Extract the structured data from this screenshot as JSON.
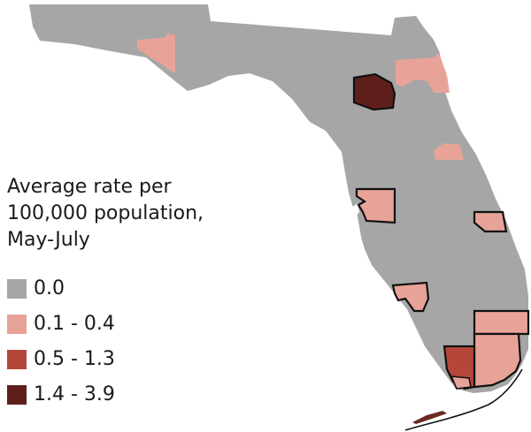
{
  "legend": {
    "title_lines": [
      "Average rate per",
      "100,000 population,",
      "May-July"
    ],
    "items": [
      {
        "label": "0.0",
        "color": "#a6a6a6"
      },
      {
        "label": "0.1 - 0.4",
        "color": "#e8a398"
      },
      {
        "label": "0.5 - 1.3",
        "color": "#b5473a"
      },
      {
        "label": "1.4 - 3.9",
        "color": "#5e1f1a"
      }
    ]
  },
  "colors": {
    "state_fill": "#a6a6a6",
    "county_outline": "#111111",
    "background": "#ffffff"
  }
}
